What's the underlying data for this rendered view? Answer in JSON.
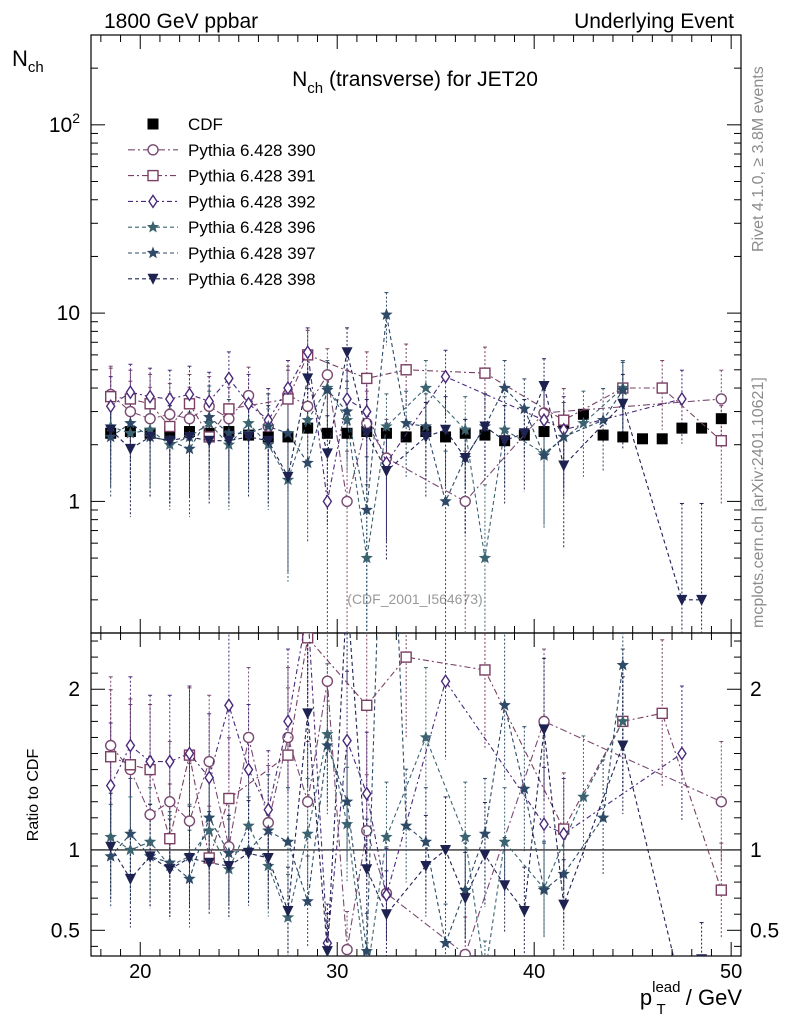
{
  "header": {
    "left": "1800 GeV ppbar",
    "right": "Underlying Event"
  },
  "side_text": {
    "rivet": "Rivet 4.1.0, ≥ 3.8M events",
    "mcplots": "mcplots.cern.ch [arXiv:2401.10621]"
  },
  "chart_data": {
    "type": "scatter",
    "title_main": "N",
    "title_sub": "ch",
    "title_rest": " (transverse) for JET20",
    "analysis_id": "(CDF_2001_I564673)",
    "ylabel_main": "N",
    "ylabel_sub": "ch",
    "xlabel_main": "p",
    "xlabel_sup": "lead",
    "xlabel_sub": "T",
    "xlabel_rest": " / GeV",
    "ratio_ylabel": "Ratio to CDF",
    "xlim": [
      17.5,
      50.5
    ],
    "ylim": [
      0.2,
      300
    ],
    "ratio_ylim": [
      0.34,
      2.35
    ],
    "yscale": "log",
    "x_ticks": [
      "20",
      "30",
      "40",
      "50"
    ],
    "y_ticks": [
      {
        "base": "10",
        "exp": "2",
        "value": 100
      },
      {
        "label": "10",
        "value": 10
      },
      {
        "label": "1",
        "value": 1
      }
    ],
    "ratio_ticks": [
      "2",
      "1",
      "0.5"
    ],
    "series": [
      {
        "name": "CDF",
        "color": "#000000",
        "marker": "square-filled",
        "x": [
          18.5,
          19.5,
          20.5,
          21.5,
          22.5,
          23.5,
          24.5,
          25.5,
          26.5,
          27.5,
          28.5,
          29.5,
          30.5,
          31.5,
          32.5,
          33.5,
          34.5,
          35.5,
          36.5,
          37.5,
          38.5,
          39.5,
          40.5,
          41.5,
          42.5,
          43.5,
          44.5,
          45.5,
          46.5,
          47.5,
          48.5,
          49.5
        ],
        "y": [
          2.3,
          2.35,
          2.3,
          2.3,
          2.35,
          2.3,
          2.35,
          2.25,
          2.2,
          2.2,
          2.45,
          2.3,
          2.3,
          2.35,
          2.3,
          2.2,
          2.35,
          2.2,
          2.3,
          2.25,
          2.1,
          2.25,
          2.35,
          2.6,
          2.9,
          2.25,
          2.2,
          2.15,
          2.15,
          2.45,
          2.45,
          2.75
        ]
      },
      {
        "name": "Pythia 6.428 390",
        "color": "#7a4a72",
        "marker": "circle-open",
        "x": [
          18.5,
          19.5,
          20.5,
          21.5,
          22.5,
          23.5,
          24.5,
          25.5,
          26.5,
          27.5,
          28.5,
          29.5,
          30.5,
          31.5,
          32.5,
          36.5,
          40.5,
          49.5
        ],
        "y": [
          3.7,
          3.0,
          2.75,
          2.9,
          2.75,
          3.2,
          2.75,
          3.65,
          2.5,
          3.7,
          3.2,
          4.7,
          1.0,
          2.6,
          1.7,
          1.0,
          2.95,
          3.5
        ],
        "ratio": [
          1.65,
          1.5,
          1.22,
          1.3,
          1.18,
          1.55,
          1.02,
          1.7,
          1.17,
          1.7,
          1.3,
          2.05,
          0.38,
          1.12,
          0.73,
          0.35,
          1.8,
          1.3
        ]
      },
      {
        "name": "Pythia 6.428 391",
        "color": "#7a3f62",
        "marker": "square-open",
        "x": [
          18.5,
          19.5,
          20.5,
          21.5,
          22.5,
          23.5,
          24.5,
          27.5,
          28.5,
          31.5,
          33.5,
          37.5,
          41.5,
          44.5,
          46.5,
          49.5
        ],
        "y": [
          3.6,
          3.5,
          3.3,
          2.5,
          3.3,
          2.2,
          3.1,
          3.5,
          6.0,
          4.5,
          5.0,
          4.8,
          2.7,
          4.0,
          4.0,
          2.1
        ],
        "ratio": [
          1.58,
          1.53,
          1.5,
          1.07,
          1.59,
          0.95,
          1.32,
          1.59,
          2.32,
          1.9,
          2.2,
          2.12,
          1.13,
          1.8,
          1.85,
          0.75
        ]
      },
      {
        "name": "Pythia 6.428 392",
        "color": "#4a2a7a",
        "marker": "diamond-open",
        "x": [
          18.5,
          19.5,
          20.5,
          21.5,
          22.5,
          23.5,
          24.5,
          25.5,
          26.5,
          27.5,
          28.5,
          29.5,
          30.5,
          31.5,
          32.5,
          35.5,
          40.5,
          41.5,
          47.5
        ],
        "y": [
          3.2,
          3.8,
          3.6,
          3.5,
          3.7,
          3.4,
          4.5,
          3.3,
          2.7,
          4.0,
          6.2,
          1.0,
          3.5,
          3.0,
          1.6,
          4.6,
          2.7,
          2.4,
          3.5
        ],
        "ratio": [
          1.4,
          1.65,
          1.55,
          1.55,
          1.6,
          1.45,
          1.9,
          1.5,
          1.25,
          1.8,
          2.5,
          0.42,
          1.68,
          1.35,
          0.72,
          2.05,
          1.16,
          1.1,
          1.6
        ]
      },
      {
        "name": "Pythia 6.428 396",
        "color": "#3c6470",
        "marker": "star-filled",
        "x": [
          18.5,
          19.5,
          20.5,
          21.5,
          22.5,
          23.5,
          24.5,
          25.5,
          26.5,
          27.5,
          28.5,
          29.5,
          30.5,
          31.5,
          32.5,
          34.5,
          36.5,
          37.5,
          38.5,
          40.5,
          42.5,
          44.5
        ],
        "y": [
          2.5,
          2.3,
          2.4,
          2.0,
          2.2,
          2.6,
          2.0,
          2.6,
          2.0,
          1.3,
          2.7,
          4.0,
          2.7,
          0.5,
          2.5,
          4.0,
          2.4,
          0.5,
          2.4,
          1.8,
          2.6,
          4.0
        ],
        "ratio": [
          1.08,
          1.0,
          1.05,
          0.9,
          0.96,
          1.12,
          0.88,
          1.15,
          0.9,
          0.58,
          1.1,
          1.72,
          1.16,
          0.21,
          1.08,
          1.7,
          1.08,
          0.22,
          1.05,
          0.76,
          1.33,
          1.8
        ]
      },
      {
        "name": "Pythia 6.428 397",
        "color": "#2e4a66",
        "marker": "star-filled",
        "x": [
          18.5,
          19.5,
          20.5,
          21.5,
          22.5,
          23.5,
          24.5,
          25.5,
          26.5,
          27.5,
          28.5,
          29.5,
          30.5,
          31.5,
          32.5,
          33.5,
          34.5,
          35.5,
          36.5,
          37.5,
          38.5,
          39.5,
          40.5,
          41.5,
          43.5,
          44.5
        ],
        "y": [
          2.2,
          2.6,
          2.2,
          2.1,
          1.9,
          2.8,
          2.3,
          2.3,
          2.5,
          2.3,
          1.6,
          3.9,
          3.0,
          0.9,
          9.8,
          2.6,
          2.5,
          1.0,
          1.7,
          2.5,
          4.0,
          3.1,
          1.75,
          2.2,
          2.7,
          3.9
        ],
        "ratio": [
          0.96,
          1.1,
          0.96,
          0.92,
          0.82,
          1.2,
          0.98,
          1.0,
          1.12,
          1.05,
          0.68,
          1.65,
          1.3,
          0.37,
          4.2,
          1.15,
          1.05,
          0.42,
          0.75,
          1.1,
          1.9,
          1.38,
          0.75,
          0.85,
          1.2,
          2.15
        ]
      },
      {
        "name": "Pythia 6.428 398",
        "color": "#1e2250",
        "marker": "triangle-down-filled",
        "x": [
          18.5,
          19.5,
          20.5,
          21.5,
          22.5,
          23.5,
          24.5,
          25.5,
          26.5,
          27.5,
          28.5,
          29.5,
          30.5,
          31.5,
          32.5,
          34.5,
          35.5,
          36.5,
          37.5,
          38.5,
          39.5,
          40.5,
          41.5,
          44.5,
          47.5,
          48.5
        ],
        "y": [
          2.4,
          1.9,
          2.2,
          2.1,
          2.2,
          2.1,
          2.1,
          2.2,
          2.1,
          1.35,
          4.5,
          1.8,
          6.2,
          2.3,
          1.45,
          2.2,
          2.4,
          1.7,
          2.5,
          2.1,
          2.3,
          4.1,
          1.55,
          3.3,
          0.3,
          0.3
        ],
        "ratio": [
          1.02,
          0.82,
          0.96,
          0.88,
          0.95,
          0.92,
          0.9,
          0.98,
          0.95,
          0.62,
          1.85,
          0.37,
          2.6,
          0.88,
          0.6,
          0.9,
          1.0,
          0.7,
          0.97,
          0.78,
          0.62,
          1.75,
          0.66,
          1.65,
          0.12,
          0.32
        ]
      }
    ]
  }
}
